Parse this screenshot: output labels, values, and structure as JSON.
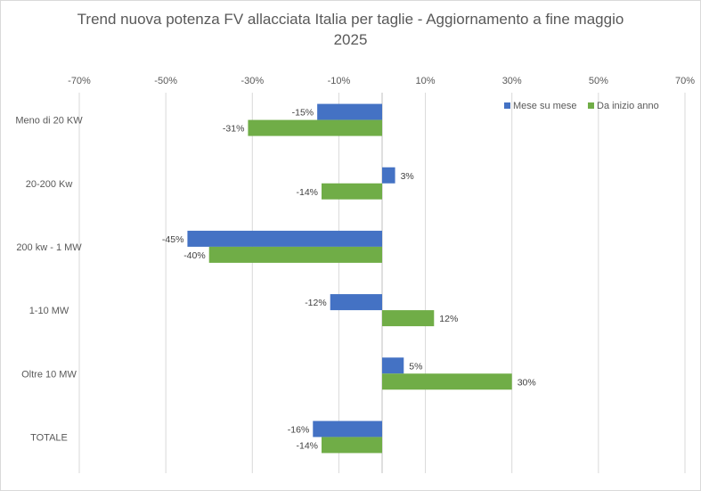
{
  "chart_data": {
    "type": "bar",
    "orientation": "horizontal",
    "title_lines": [
      "Trend nuova potenza FV allacciata Italia per taglie - Aggiornamento a fine maggio",
      "2025"
    ],
    "categories": [
      "Meno di 20 KW",
      "20-200 Kw",
      "200 kw - 1 MW",
      "1-10 MW",
      "Oltre 10 MW",
      "TOTALE"
    ],
    "series": [
      {
        "name": "Mese su mese",
        "color": "#4472C4",
        "values": [
          -15,
          3,
          -45,
          -12,
          5,
          -16
        ]
      },
      {
        "name": "Da inizio anno",
        "color": "#70AD47",
        "values": [
          -31,
          -14,
          -40,
          12,
          30,
          -14
        ]
      }
    ],
    "value_unit": "%",
    "xlim": [
      -70,
      70
    ],
    "xticks": [
      -70,
      -50,
      -30,
      -10,
      10,
      30,
      50,
      70
    ],
    "tick_labels": [
      "-70%",
      "-50%",
      "-30%",
      "-10%",
      "10%",
      "30%",
      "50%",
      "70%"
    ],
    "axis_position": "top",
    "grid": true,
    "legend_position": "top-right"
  }
}
